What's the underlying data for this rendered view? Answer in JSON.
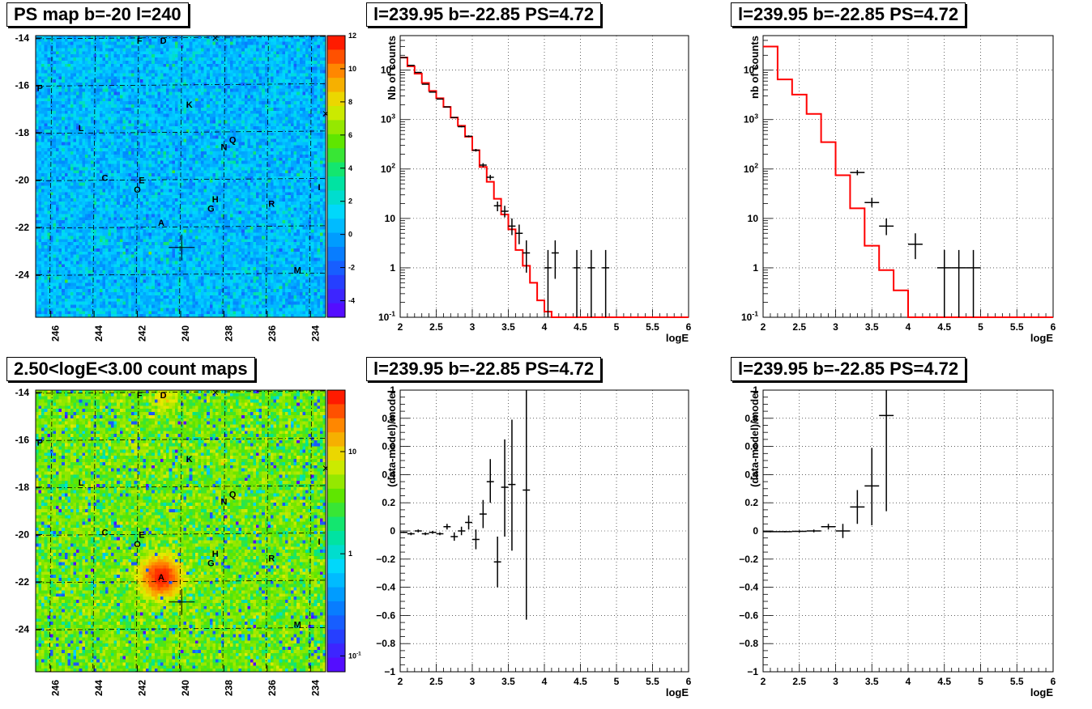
{
  "colors": {
    "frame": "#000000",
    "model": "#ff0000",
    "data": "#000000",
    "grid": "#000000"
  },
  "sources": [
    {
      "label": "F",
      "l": 241.9,
      "b": -14.1
    },
    {
      "label": "D",
      "l": 240.8,
      "b": -14.1
    },
    {
      "label": "P",
      "l": 246.5,
      "b": -16.1
    },
    {
      "label": "K",
      "l": 239.6,
      "b": -16.8
    },
    {
      "label": "L",
      "l": 244.6,
      "b": -17.8
    },
    {
      "label": "Q",
      "l": 237.6,
      "b": -18.3
    },
    {
      "label": "N",
      "l": 238.0,
      "b": -18.6
    },
    {
      "label": "C",
      "l": 243.5,
      "b": -19.9
    },
    {
      "label": "E",
      "l": 241.8,
      "b": -20.0
    },
    {
      "label": "O",
      "l": 242.0,
      "b": -20.4
    },
    {
      "label": "H",
      "l": 238.4,
      "b": -20.8
    },
    {
      "label": "R",
      "l": 235.8,
      "b": -21.0
    },
    {
      "label": "G",
      "l": 238.6,
      "b": -21.2
    },
    {
      "label": "A",
      "l": 240.9,
      "b": -21.8
    },
    {
      "label": "M",
      "l": 234.6,
      "b": -23.8
    },
    {
      "label": "I",
      "l": 233.6,
      "b": -20.3
    }
  ],
  "crosses": [
    {
      "l": 238.4,
      "b": -14.0
    },
    {
      "l": 233.3,
      "b": -17.2
    }
  ],
  "target": {
    "l": 239.95,
    "b": -22.85
  },
  "chart_data": [
    {
      "type": "heatmap",
      "title": "PS map b=-20 l=240",
      "xlim": [
        233.3,
        246.7
      ],
      "ylim": [
        -25.8,
        -13.9
      ],
      "xticks": [
        246,
        244,
        242,
        240,
        238,
        236,
        234
      ],
      "yticks": [
        -14,
        -16,
        -18,
        -20,
        -22,
        -24
      ],
      "zlim": [
        -5,
        12
      ],
      "zticks": [
        12,
        10,
        8,
        6,
        4,
        2,
        0,
        -2,
        -4
      ],
      "colorbar_scale": "linear",
      "overlay": "sources"
    },
    {
      "type": "line",
      "title": "l=239.95 b=-22.85 PS=4.72",
      "xlabel": "logE",
      "ylabel": "Nb of counts",
      "xlim": [
        2,
        6
      ],
      "ylim": [
        0.1,
        50000
      ],
      "yscale": "log",
      "xticks": [
        2,
        2.5,
        3,
        3.5,
        4,
        4.5,
        5,
        5.5,
        6
      ],
      "xtick_labels": [
        "2",
        "2.5",
        "3",
        "3.5",
        "4",
        "4.5",
        "5",
        "5.5",
        "6"
      ],
      "yticks": [
        0.1,
        1,
        10,
        100,
        1000,
        10000
      ],
      "ytick_labels": [
        "10^-1",
        "1",
        "10",
        "10^2",
        "10^3",
        "10^4"
      ],
      "grid": true,
      "model_step": {
        "edges": [
          2.0,
          2.1,
          2.2,
          2.3,
          2.4,
          2.5,
          2.6,
          2.7,
          2.8,
          2.9,
          3.0,
          3.1,
          3.2,
          3.3,
          3.4,
          3.5,
          3.6,
          3.7,
          3.8,
          3.9,
          4.0,
          4.1,
          4.2,
          6.0
        ],
        "values": [
          18000,
          12000,
          8500,
          5500,
          3800,
          2700,
          1800,
          1100,
          750,
          450,
          240,
          110,
          55,
          25,
          12,
          6,
          2.3,
          1.1,
          0.5,
          0.22,
          0.13,
          0.1,
          0.1
        ]
      },
      "data_points": [
        {
          "x": 2.05,
          "y": 18000,
          "lo": 17800,
          "hi": 18200
        },
        {
          "x": 2.15,
          "y": 12500,
          "lo": 12350,
          "hi": 12650
        },
        {
          "x": 2.25,
          "y": 9000,
          "lo": 8900,
          "hi": 9100
        },
        {
          "x": 2.35,
          "y": 5200,
          "lo": 5120,
          "hi": 5280
        },
        {
          "x": 2.45,
          "y": 3600,
          "lo": 3540,
          "hi": 3660
        },
        {
          "x": 2.55,
          "y": 2600,
          "lo": 2550,
          "hi": 2650
        },
        {
          "x": 2.65,
          "y": 1800,
          "lo": 1760,
          "hi": 1840
        },
        {
          "x": 2.75,
          "y": 1100,
          "lo": 1070,
          "hi": 1130
        },
        {
          "x": 2.85,
          "y": 720,
          "lo": 695,
          "hi": 745
        },
        {
          "x": 2.95,
          "y": 460,
          "lo": 440,
          "hi": 480
        },
        {
          "x": 3.05,
          "y": 240,
          "lo": 225,
          "hi": 255
        },
        {
          "x": 3.15,
          "y": 120,
          "lo": 109,
          "hi": 131
        },
        {
          "x": 3.25,
          "y": 68,
          "lo": 60,
          "hi": 76
        },
        {
          "x": 3.35,
          "y": 18,
          "lo": 14,
          "hi": 22
        },
        {
          "x": 3.45,
          "y": 14,
          "lo": 10.5,
          "hi": 18
        },
        {
          "x": 3.55,
          "y": 7,
          "lo": 4.6,
          "hi": 10
        },
        {
          "x": 3.65,
          "y": 5,
          "lo": 3,
          "hi": 7.5
        },
        {
          "x": 3.75,
          "y": 2,
          "lo": 0.8,
          "hi": 3.6
        },
        {
          "x": 4.05,
          "y": 1,
          "lo": 0.1,
          "hi": 2.3
        },
        {
          "x": 4.15,
          "y": 2,
          "lo": 0.6,
          "hi": 3.6
        },
        {
          "x": 4.45,
          "y": 1,
          "lo": 0.1,
          "hi": 2.3
        },
        {
          "x": 4.65,
          "y": 1,
          "lo": 0.1,
          "hi": 2.3
        },
        {
          "x": 4.85,
          "y": 1,
          "lo": 0.1,
          "hi": 2.3
        }
      ]
    },
    {
      "type": "line",
      "title": "l=239.95 b=-22.85 PS=4.72",
      "xlabel": "logE",
      "ylabel": "nb of counts",
      "xlim": [
        2,
        6
      ],
      "ylim": [
        0.1,
        50000
      ],
      "yscale": "log",
      "xticks": [
        2,
        2.5,
        3,
        3.5,
        4,
        4.5,
        5,
        5.5,
        6
      ],
      "xtick_labels": [
        "2",
        "2.5",
        "3",
        "3.5",
        "4",
        "4.5",
        "5",
        "5.5",
        "6"
      ],
      "yticks": [
        0.1,
        1,
        10,
        100,
        1000,
        10000
      ],
      "ytick_labels": [
        "10^-1",
        "1",
        "10",
        "10^2",
        "10^3",
        "10^4"
      ],
      "grid": true,
      "model_step": {
        "edges": [
          2.0,
          2.2,
          2.4,
          2.6,
          2.8,
          3.0,
          3.2,
          3.4,
          3.6,
          3.8,
          4.0,
          4.2,
          6.0
        ],
        "values": [
          30000,
          6500,
          3200,
          1300,
          350,
          75,
          16,
          2.8,
          0.9,
          0.35,
          0.1,
          0.1
        ]
      },
      "data_points": [
        {
          "x": 3.3,
          "y": 85,
          "lo": 75,
          "hi": 95,
          "xerr": 0.1
        },
        {
          "x": 3.5,
          "y": 21,
          "lo": 17,
          "hi": 26,
          "xerr": 0.1
        },
        {
          "x": 3.7,
          "y": 7,
          "lo": 4.6,
          "hi": 10,
          "xerr": 0.1
        },
        {
          "x": 4.1,
          "y": 3,
          "lo": 1.5,
          "hi": 5,
          "xerr": 0.1
        },
        {
          "x": 4.5,
          "y": 1,
          "lo": 0.1,
          "hi": 2.3,
          "xerr": 0.1
        },
        {
          "x": 4.7,
          "y": 1,
          "lo": 0.1,
          "hi": 2.3,
          "xerr": 0.1
        },
        {
          "x": 4.9,
          "y": 1,
          "lo": 0.1,
          "hi": 2.3,
          "xerr": 0.1
        }
      ]
    },
    {
      "type": "heatmap",
      "title": "2.50<logE<3.00 count maps",
      "xlim": [
        233.3,
        246.7
      ],
      "ylim": [
        -25.8,
        -13.9
      ],
      "xticks": [
        246,
        244,
        242,
        240,
        238,
        236,
        234
      ],
      "yticks": [
        -14,
        -16,
        -18,
        -20,
        -22,
        -24
      ],
      "zlim": [
        0.07,
        40
      ],
      "zticks": [
        10,
        1,
        0.1
      ],
      "ztick_labels": [
        "10",
        "1",
        "10^-1"
      ],
      "colorbar_scale": "log",
      "overlay": "sources"
    },
    {
      "type": "scatter",
      "title": "l=239.95 b=-22.85 PS=4.72",
      "xlabel": "logE",
      "ylabel": "(data-model)/model",
      "xlim": [
        2,
        6
      ],
      "ylim": [
        -1,
        1
      ],
      "xticks": [
        2,
        2.5,
        3,
        3.5,
        4,
        4.5,
        5,
        5.5,
        6
      ],
      "xtick_labels": [
        "2",
        "2.5",
        "3",
        "3.5",
        "4",
        "4.5",
        "5",
        "5.5",
        "6"
      ],
      "yticks": [
        -1,
        -0.8,
        -0.6,
        -0.4,
        -0.2,
        0,
        0.2,
        0.4,
        0.6,
        0.8,
        1
      ],
      "ytick_labels": [
        "−1",
        "−0.8",
        "−0.6",
        "−0.4",
        "−0.2",
        "0",
        "0.2",
        "0.4",
        "0.6",
        "0.8",
        "1"
      ],
      "grid": true,
      "data_points": [
        {
          "x": 2.05,
          "y": -0.01,
          "lo": -0.015,
          "hi": -0.005
        },
        {
          "x": 2.15,
          "y": -0.02,
          "lo": -0.03,
          "hi": -0.01
        },
        {
          "x": 2.25,
          "y": 0.0,
          "lo": -0.01,
          "hi": 0.01
        },
        {
          "x": 2.35,
          "y": -0.02,
          "lo": -0.03,
          "hi": -0.01
        },
        {
          "x": 2.45,
          "y": -0.01,
          "lo": -0.02,
          "hi": 0.0
        },
        {
          "x": 2.55,
          "y": -0.02,
          "lo": -0.03,
          "hi": -0.01
        },
        {
          "x": 2.65,
          "y": 0.03,
          "lo": 0.01,
          "hi": 0.05
        },
        {
          "x": 2.75,
          "y": -0.04,
          "lo": -0.07,
          "hi": -0.01
        },
        {
          "x": 2.85,
          "y": 0.0,
          "lo": -0.03,
          "hi": 0.03
        },
        {
          "x": 2.95,
          "y": 0.06,
          "lo": 0.01,
          "hi": 0.11
        },
        {
          "x": 3.05,
          "y": -0.06,
          "lo": -0.13,
          "hi": 0.01
        },
        {
          "x": 3.15,
          "y": 0.12,
          "lo": 0.02,
          "hi": 0.22
        },
        {
          "x": 3.25,
          "y": 0.35,
          "lo": 0.2,
          "hi": 0.51
        },
        {
          "x": 3.35,
          "y": -0.22,
          "lo": -0.4,
          "hi": -0.04
        },
        {
          "x": 3.45,
          "y": 0.31,
          "lo": -0.04,
          "hi": 0.65
        },
        {
          "x": 3.55,
          "y": 0.33,
          "lo": -0.14,
          "hi": 0.79
        },
        {
          "x": 3.75,
          "y": 0.29,
          "lo": -0.63,
          "hi": 1.2
        }
      ]
    },
    {
      "type": "scatter",
      "title": "l=239.95 b=-22.85 PS=4.72",
      "xlabel": "logE",
      "ylabel": "(data-model)/model",
      "xlim": [
        2,
        6
      ],
      "ylim": [
        -1,
        1
      ],
      "xticks": [
        2,
        2.5,
        3,
        3.5,
        4,
        4.5,
        5,
        5.5,
        6
      ],
      "xtick_labels": [
        "2",
        "2.5",
        "3",
        "3.5",
        "4",
        "4.5",
        "5",
        "5.5",
        "6"
      ],
      "yticks": [
        -1,
        -0.8,
        -0.6,
        -0.4,
        -0.2,
        0,
        0.2,
        0.4,
        0.6,
        0.8,
        1
      ],
      "ytick_labels": [
        "−1",
        "−0.8",
        "−0.6",
        "−0.4",
        "−0.2",
        "0",
        "0.2",
        "0.4",
        "0.6",
        "0.8",
        "1"
      ],
      "grid": true,
      "data_points": [
        {
          "x": 2.1,
          "y": -0.005,
          "lo": -0.01,
          "hi": 0.0,
          "xerr": 0.1
        },
        {
          "x": 2.3,
          "y": -0.005,
          "lo": -0.01,
          "hi": 0.0,
          "xerr": 0.1
        },
        {
          "x": 2.5,
          "y": -0.003,
          "lo": -0.01,
          "hi": 0.004,
          "xerr": 0.1
        },
        {
          "x": 2.7,
          "y": 0.0,
          "lo": -0.01,
          "hi": 0.01,
          "xerr": 0.1
        },
        {
          "x": 2.9,
          "y": 0.03,
          "lo": 0.01,
          "hi": 0.05,
          "xerr": 0.1
        },
        {
          "x": 3.1,
          "y": 0.0,
          "lo": -0.05,
          "hi": 0.05,
          "xerr": 0.1
        },
        {
          "x": 3.3,
          "y": 0.17,
          "lo": 0.05,
          "hi": 0.29,
          "xerr": 0.1
        },
        {
          "x": 3.5,
          "y": 0.32,
          "lo": 0.04,
          "hi": 0.59,
          "xerr": 0.1
        },
        {
          "x": 3.7,
          "y": 0.82,
          "lo": 0.14,
          "hi": 1.5,
          "xerr": 0.1
        }
      ]
    }
  ]
}
